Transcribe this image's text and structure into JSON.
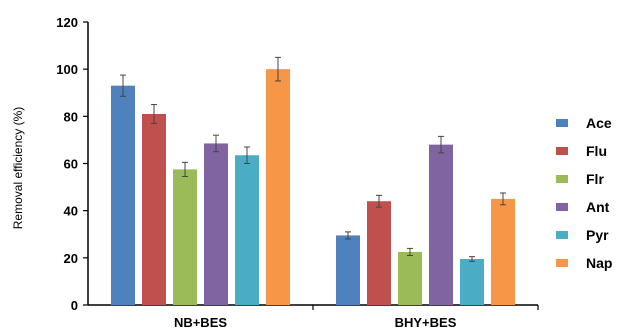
{
  "chart_data": {
    "type": "bar",
    "title": "",
    "xlabel": "",
    "ylabel": "Removal efficiency (%)",
    "ylim": [
      0,
      120
    ],
    "yticks": [
      "0",
      "20",
      "40",
      "60",
      "80",
      "100",
      "120"
    ],
    "grid": false,
    "legend_position": "right",
    "categories": [
      "NB+BES",
      "BHY+BES"
    ],
    "error_bars": true,
    "series": [
      {
        "name": "Ace",
        "color": "#4F81BD",
        "values": [
          93,
          29.5
        ],
        "errors": [
          4.5,
          1.5
        ]
      },
      {
        "name": "Flu",
        "color": "#C0504D",
        "values": [
          81,
          44
        ],
        "errors": [
          4,
          2.5
        ]
      },
      {
        "name": "Flr",
        "color": "#9BBB59",
        "values": [
          57.5,
          22.5
        ],
        "errors": [
          3,
          1.5
        ]
      },
      {
        "name": "Ant",
        "color": "#8064A2",
        "values": [
          68.5,
          68
        ],
        "errors": [
          3.5,
          3.5
        ]
      },
      {
        "name": "Pyr",
        "color": "#4BACC6",
        "values": [
          63.5,
          19.5
        ],
        "errors": [
          3.5,
          1
        ]
      },
      {
        "name": "Nap",
        "color": "#F79646",
        "values": [
          100,
          45
        ],
        "errors": [
          5,
          2.5
        ]
      }
    ]
  }
}
